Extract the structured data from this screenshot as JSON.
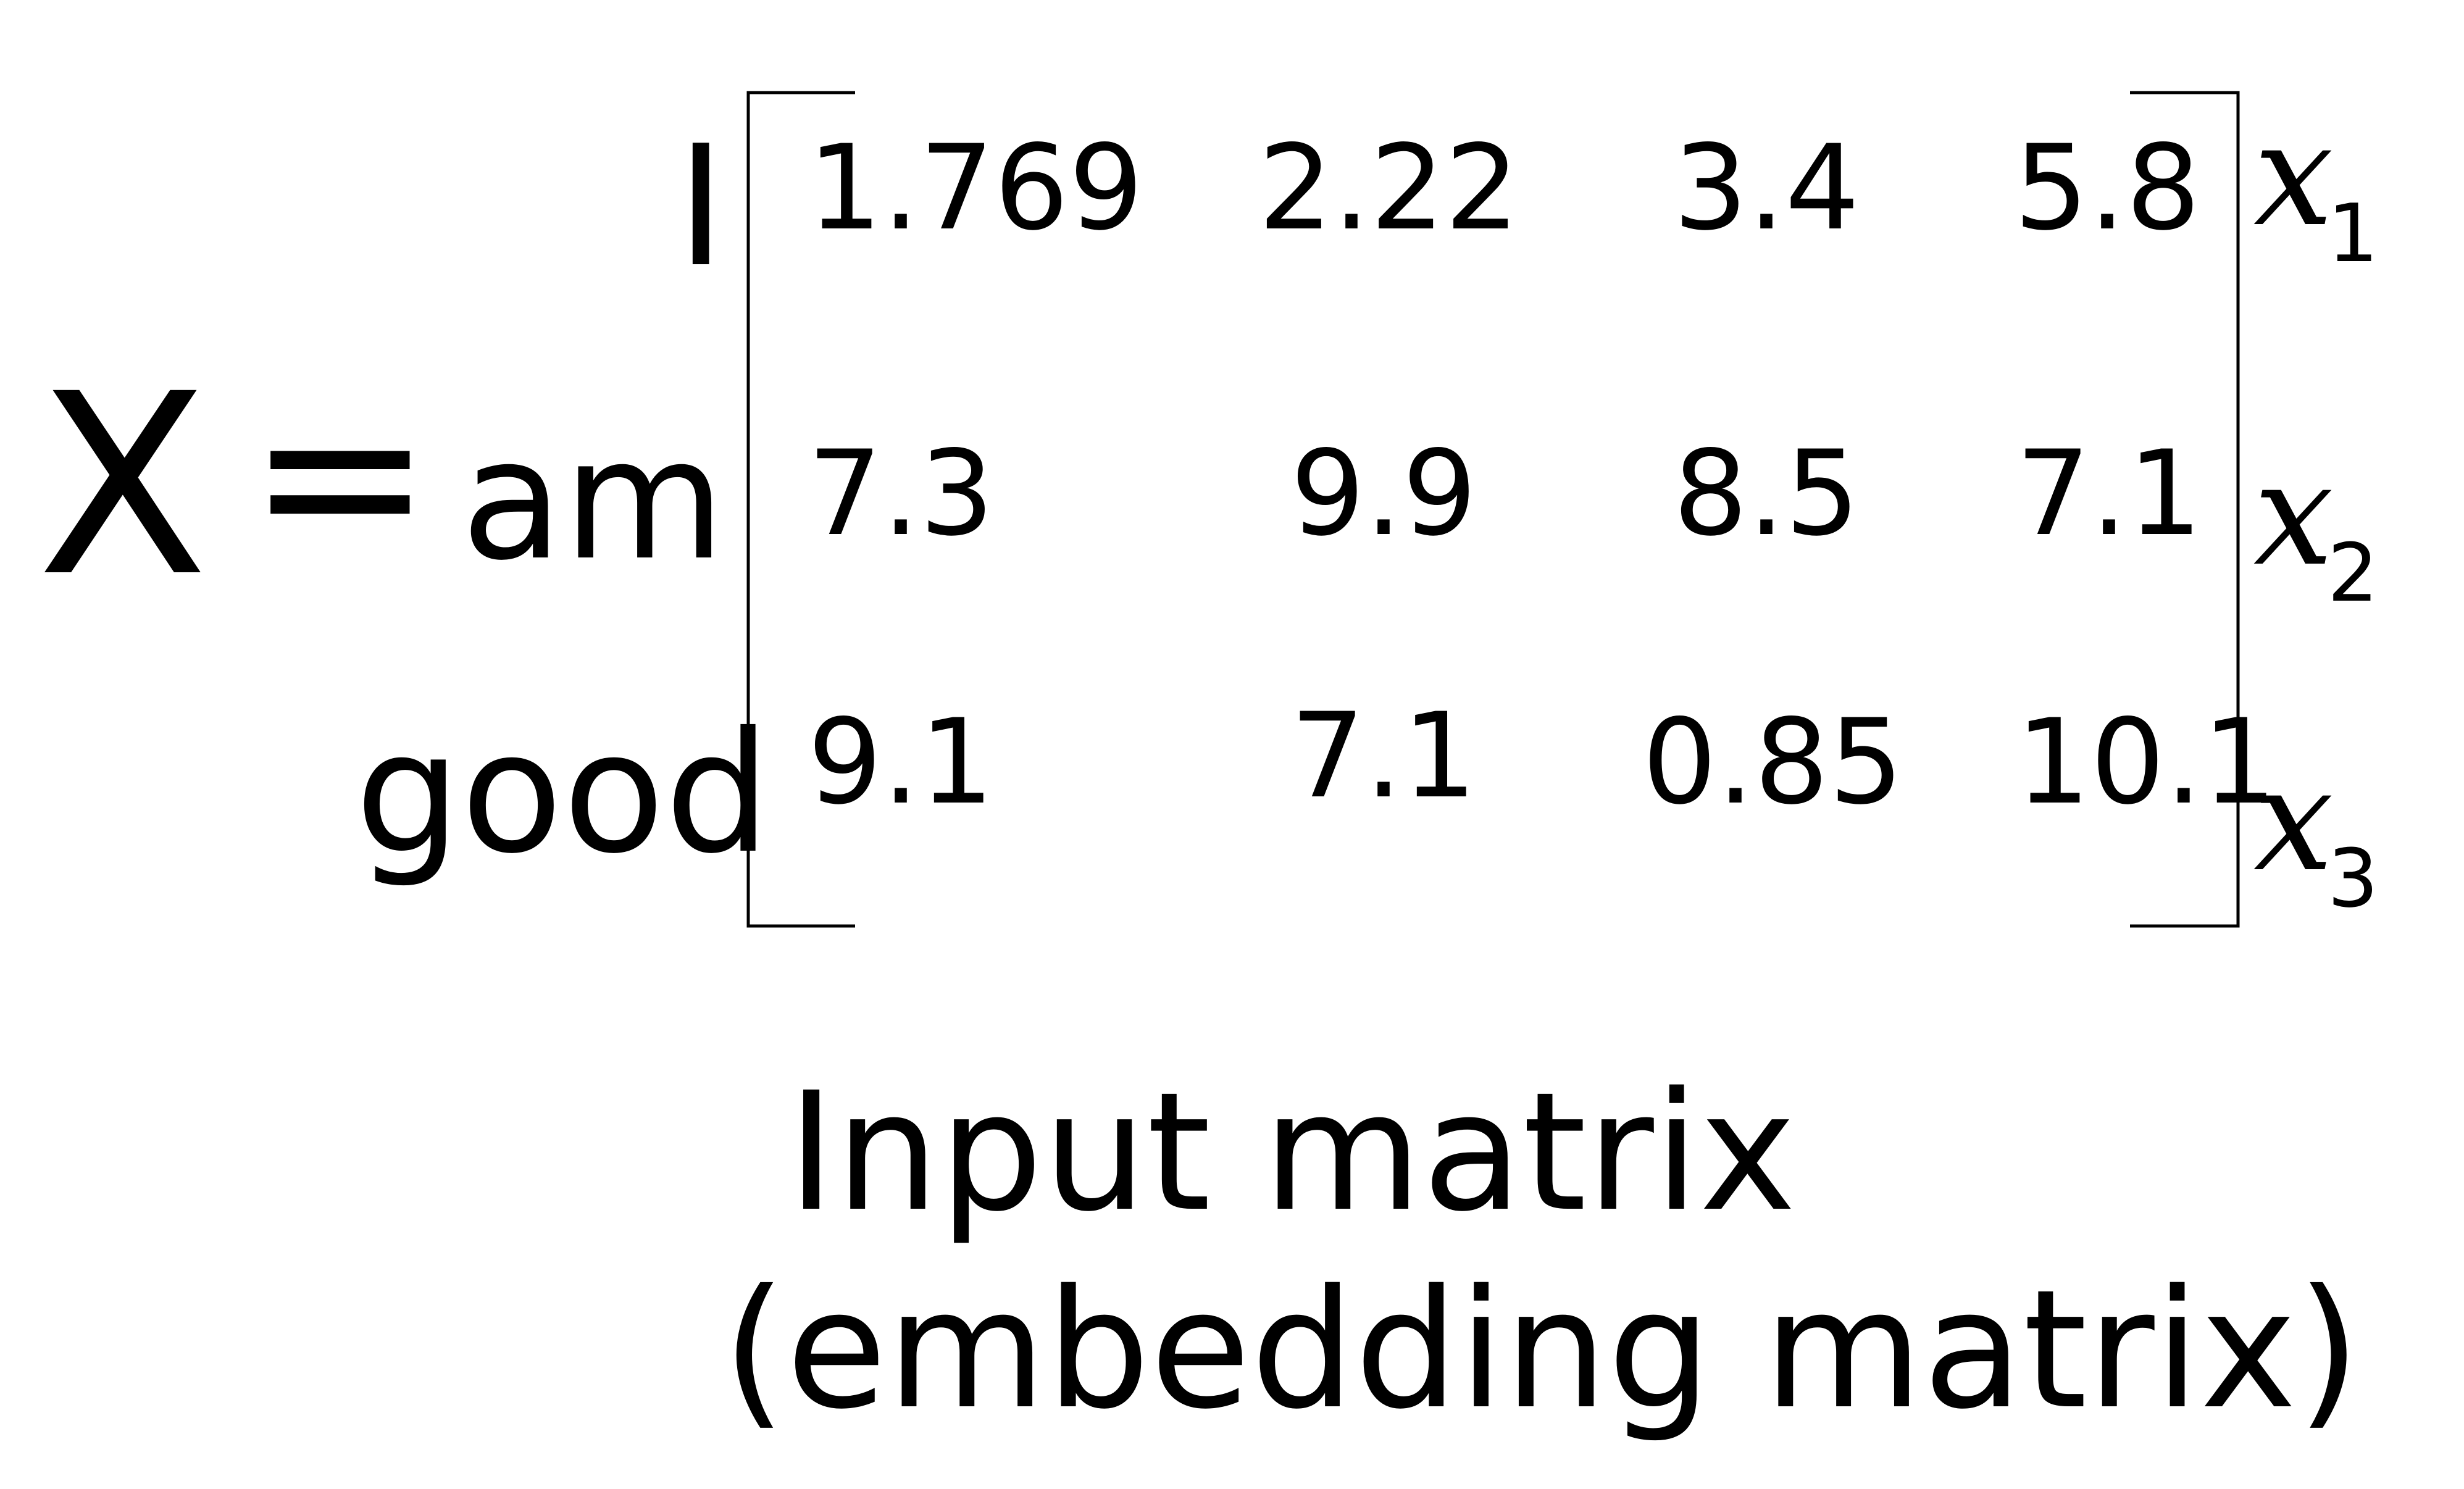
{
  "matrix": {
    "symbol": "X",
    "equals": "=",
    "row_labels": [
      "I",
      "am",
      "good"
    ],
    "rows": [
      [
        "1.769",
        "2.22",
        "3.4",
        "5.8"
      ],
      [
        "7.3",
        "9.9",
        "8.5",
        "7.1"
      ],
      [
        "9.1",
        "7.1",
        "0.85",
        "10.1"
      ]
    ],
    "vector_labels": [
      {
        "base": "x",
        "sub": "1"
      },
      {
        "base": "x",
        "sub": "2"
      },
      {
        "base": "x",
        "sub": "3"
      }
    ]
  },
  "caption": {
    "line1": "Input  matrix",
    "line2": "(embedding matrix)"
  }
}
